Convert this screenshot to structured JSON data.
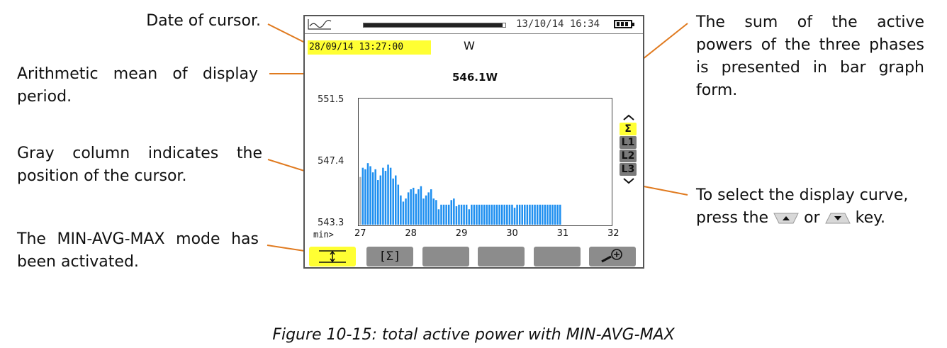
{
  "annotations": {
    "date_of_cursor": "Date of cursor.",
    "arithmetic_mean": "Arithmetic mean of display period.",
    "gray_column": "Gray column indicates the position of the cursor.",
    "min_avg_max": "The MIN-AVG-MAX mode has been activated.",
    "sum_active": "The sum of the active powers of the three phases is presented in bar graph form.",
    "select_curve_prefix": "To select the display curve, press the",
    "select_curve_or": "or",
    "select_curve_suffix": "key."
  },
  "caption": "Figure 10-15: total active power with MIN-AVG-MAX",
  "device": {
    "clock": "13/10/14 16:34",
    "cursor_date": "28/09/14 13:27:00",
    "unit": "W",
    "mean_value": "546.1W",
    "scroll_position": 0.98,
    "phase_selector": [
      "Σ",
      "L1",
      "L2",
      "L3"
    ],
    "selected_phase": "Σ",
    "function_keys": [
      {
        "label": "",
        "icon": "min-avg-max-icon",
        "active": true
      },
      {
        "label": "[Σ]",
        "icon": "",
        "active": false
      },
      {
        "label": "",
        "icon": "",
        "active": false
      },
      {
        "label": "",
        "icon": "",
        "active": false
      },
      {
        "label": "",
        "icon": "",
        "active": false
      },
      {
        "label": "",
        "icon": "zoom-in-icon",
        "active": false
      }
    ]
  },
  "colors": {
    "bar": "#1e8ff0",
    "cursor_column": "#b0b0b0",
    "highlight": "#ffff33",
    "leader_line": "#e07a1f",
    "function_key": "#8c8c8c"
  },
  "chart_data": {
    "type": "bar",
    "x_prefix": "min>",
    "x_ticks": [
      "27",
      "28",
      "29",
      "30",
      "31",
      "32"
    ],
    "y_ticks": [
      "551.5",
      "547.4",
      "543.3"
    ],
    "ylim": [
      543.3,
      551.5
    ],
    "xlim": [
      27,
      32
    ],
    "cursor_index": 0,
    "x": [
      27.0,
      27.05,
      27.1,
      27.15,
      27.2,
      27.25,
      27.3,
      27.35,
      27.4,
      27.45,
      27.5,
      27.55,
      27.6,
      27.65,
      27.7,
      27.75,
      27.8,
      27.85,
      27.9,
      27.95,
      28.0,
      28.05,
      28.1,
      28.15,
      28.2,
      28.25,
      28.3,
      28.35,
      28.4,
      28.45,
      28.5,
      28.55,
      28.6,
      28.65,
      28.7,
      28.75,
      28.8,
      28.85,
      28.9,
      28.95,
      29.0,
      29.05,
      29.1,
      29.15,
      29.2,
      29.25,
      29.3,
      29.35,
      29.4,
      29.45,
      29.5,
      29.55,
      29.6,
      29.65,
      29.7,
      29.75,
      29.8,
      29.85,
      29.9,
      29.95,
      30.0,
      30.05,
      30.1,
      30.15,
      30.2,
      30.25,
      30.3,
      30.35,
      30.4,
      30.45,
      30.5,
      30.55,
      30.6,
      30.65,
      30.7,
      30.75,
      30.8,
      30.85,
      30.9,
      30.95
    ],
    "values": [
      546.4,
      547.0,
      546.9,
      547.3,
      547.1,
      546.7,
      546.9,
      546.2,
      546.5,
      547.0,
      546.8,
      547.2,
      547.0,
      546.3,
      546.5,
      545.9,
      545.2,
      544.8,
      545.0,
      545.4,
      545.6,
      545.7,
      545.3,
      545.6,
      545.8,
      545.0,
      545.2,
      545.4,
      545.6,
      545.0,
      544.9,
      544.3,
      544.6,
      544.6,
      544.6,
      544.6,
      544.9,
      545.0,
      544.5,
      544.6,
      544.6,
      544.6,
      544.6,
      544.3,
      544.6,
      544.6,
      544.6,
      544.6,
      544.6,
      544.6,
      544.6,
      544.6,
      544.6,
      544.6,
      544.6,
      544.6,
      544.6,
      544.6,
      544.6,
      544.6,
      544.6,
      544.4,
      544.6,
      544.6,
      544.6,
      544.6,
      544.6,
      544.6,
      544.6,
      544.6,
      544.6,
      544.6,
      544.6,
      544.6,
      544.6,
      544.6,
      544.6,
      544.6,
      544.6,
      544.6
    ]
  }
}
